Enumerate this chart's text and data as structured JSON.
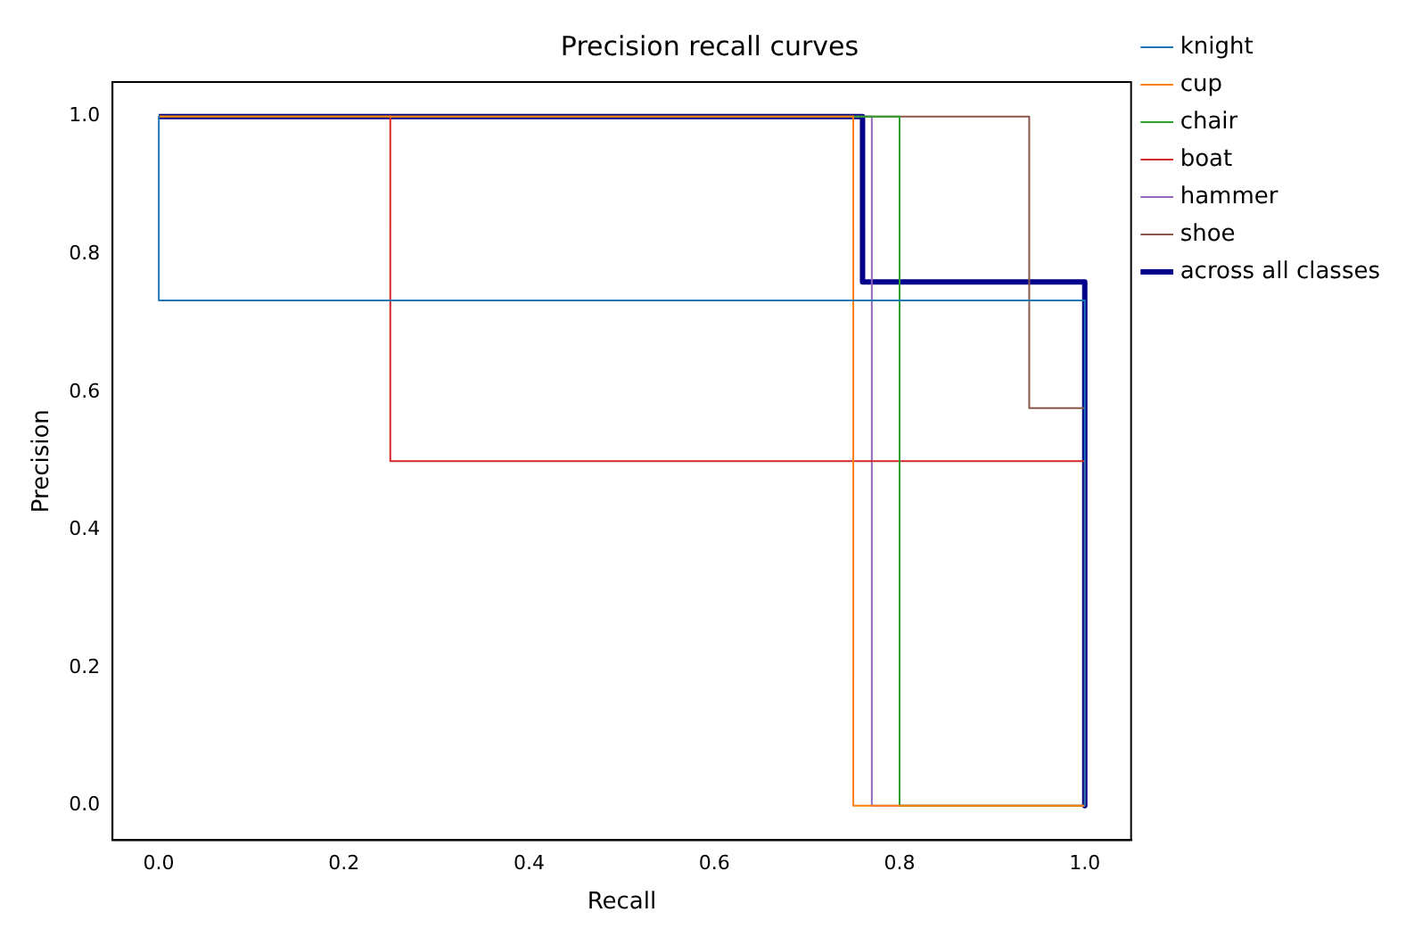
{
  "chart_data": {
    "type": "line",
    "title": "Precision recall curves",
    "xlabel": "Recall",
    "ylabel": "Precision",
    "series": [
      {
        "name": "knight",
        "color": "#1f77b4",
        "x": [
          0,
          0,
          1,
          1
        ],
        "values": [
          1,
          0.733,
          0.733,
          0
        ]
      },
      {
        "name": "cup",
        "color": "#ff7f0e",
        "x": [
          0,
          0.75,
          0.75,
          1
        ],
        "values": [
          1,
          1,
          0,
          0
        ]
      },
      {
        "name": "chair",
        "color": "#2ca02c",
        "x": [
          0,
          0.8,
          0.8,
          1
        ],
        "values": [
          1,
          1,
          0,
          0
        ]
      },
      {
        "name": "boat",
        "color": "#d62728",
        "x": [
          0,
          0.25,
          0.25,
          1,
          1
        ],
        "values": [
          1,
          1,
          0.5,
          0.5,
          0
        ]
      },
      {
        "name": "hammer",
        "color": "#9467bd",
        "x": [
          0,
          0.77,
          0.77,
          1
        ],
        "values": [
          1,
          1,
          0,
          0
        ]
      },
      {
        "name": "shoe",
        "color": "#8c564b",
        "x": [
          0,
          0.94,
          0.94,
          1
        ],
        "values": [
          1,
          1,
          0.577,
          0.577
        ]
      },
      {
        "name": "across all classes",
        "color": "#00008b",
        "x": [
          0,
          0.76,
          0.76,
          1,
          1
        ],
        "values": [
          1,
          1,
          0.76,
          0.76,
          0
        ]
      }
    ],
    "xlim": [
      -0.05,
      1.05
    ],
    "ylim": [
      -0.05,
      1.05
    ],
    "xticks": [
      {
        "value": 0,
        "label": "0.0"
      },
      {
        "value": 0.2,
        "label": "0.2"
      },
      {
        "value": 0.4,
        "label": "0.4"
      },
      {
        "value": 0.6,
        "label": "0.6"
      },
      {
        "value": 0.8,
        "label": "0.8"
      },
      {
        "value": 1,
        "label": "1.0"
      }
    ],
    "yticks": [
      {
        "value": 0,
        "label": "0.0"
      },
      {
        "value": 0.2,
        "label": "0.2"
      },
      {
        "value": 0.4,
        "label": "0.4"
      },
      {
        "value": 0.6,
        "label": "0.6"
      },
      {
        "value": 0.8,
        "label": "0.8"
      },
      {
        "value": 1,
        "label": "1.0"
      }
    ],
    "grid": false,
    "legend": "right",
    "marker": "none",
    "line_style": "solid"
  }
}
